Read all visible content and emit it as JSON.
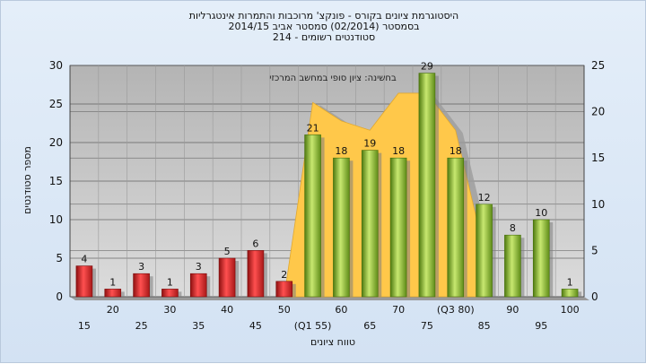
{
  "title_lines": [
    "היסטוגרמת ציונים בקורס - פונקצ' מרוכבות והתמרות אינטגרליות",
    "בסמסטר   (02/2014)  סמסטר אביב 2014/15",
    "סטודנטים רשומים - 214"
  ],
  "chart_data": {
    "type": "bar",
    "title": "היסטוגרמת ציונים בקורס - פונקצ' מרוכבות והתמרות אינטגרליות",
    "xlabel": "טווח ציונים",
    "ylabel": "מספר סטודנטים",
    "ylim": [
      0,
      30
    ],
    "y2lim": [
      0,
      25
    ],
    "y_ticks": [
      0,
      5,
      10,
      15,
      20,
      25,
      30
    ],
    "y2_ticks": [
      0,
      5,
      10,
      15,
      20,
      25
    ],
    "categories": [
      "15",
      "20",
      "25",
      "30",
      "35",
      "40",
      "45",
      "50",
      "(Q1 55)",
      "60",
      "65",
      "70",
      "75",
      "(Q3 80)",
      "85",
      "90",
      "95",
      "100"
    ],
    "values": [
      4,
      1,
      3,
      1,
      3,
      5,
      6,
      2,
      21,
      18,
      19,
      18,
      29,
      18,
      12,
      8,
      10,
      1
    ],
    "bar_colors": [
      "red",
      "red",
      "red",
      "red",
      "red",
      "red",
      "red",
      "red",
      "green",
      "green",
      "green",
      "green",
      "green",
      "green",
      "green",
      "green",
      "green",
      "green"
    ],
    "area_series": {
      "label": "בחשינה: ציון סופי במחשב המרכזי",
      "x_categories": [
        "50",
        "(Q1 55)",
        "60",
        "65",
        "70",
        "75",
        "(Q3 80)",
        "85"
      ],
      "values": [
        0,
        21,
        19,
        18,
        22,
        22,
        18,
        5
      ]
    },
    "grid": true,
    "colors": {
      "red_bar": "#d42a2a",
      "green_bar": "#88b828",
      "area": "#ffc84a",
      "plot_bg": "#c8c8c8"
    }
  }
}
